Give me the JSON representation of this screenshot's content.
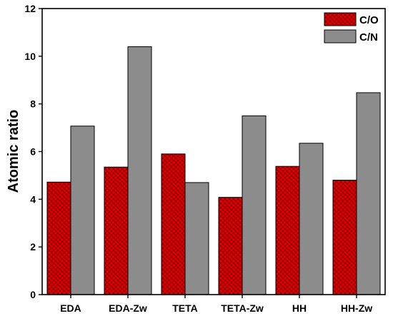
{
  "chart_data": {
    "type": "bar",
    "categories": [
      "EDA",
      "EDA-Zw",
      "TETA",
      "TETA-Zw",
      "HH",
      "HH-Zw"
    ],
    "series": [
      {
        "name": "C/O",
        "values": [
          4.72,
          5.35,
          5.9,
          4.08,
          5.38,
          4.8
        ],
        "color": "#e00000",
        "pattern": "crosshatch"
      },
      {
        "name": "C/N",
        "values": [
          7.07,
          10.4,
          4.7,
          7.5,
          6.35,
          8.47
        ],
        "color": "#8c8c8c",
        "pattern": "solid"
      }
    ],
    "title": "",
    "xlabel": "",
    "ylabel": "Atomic ratio",
    "ylim": [
      0,
      12
    ],
    "yticks": [
      0,
      2,
      4,
      6,
      8,
      10,
      12
    ],
    "grid": false,
    "legend_position": "top-right"
  }
}
